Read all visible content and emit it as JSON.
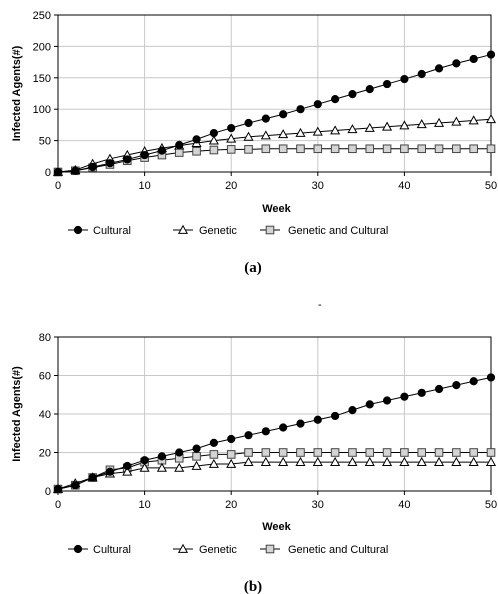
{
  "chart_data": [
    {
      "type": "line",
      "caption": "(a)",
      "xlabel": "Week",
      "ylabel": "Infected Agents(#)",
      "xlim": [
        0,
        50
      ],
      "ylim": [
        0,
        250
      ],
      "xticks": [
        0,
        10,
        20,
        30,
        40,
        50
      ],
      "yticks": [
        0,
        50,
        100,
        150,
        200,
        250
      ],
      "grid": true,
      "legend_position": "bottom",
      "x": [
        0,
        2,
        4,
        6,
        8,
        10,
        12,
        14,
        16,
        18,
        20,
        22,
        24,
        26,
        28,
        30,
        32,
        34,
        36,
        38,
        40,
        42,
        44,
        46,
        48,
        50
      ],
      "series": [
        {
          "name": "Cultural",
          "marker": "filled-circle",
          "values": [
            0,
            2,
            8,
            14,
            20,
            27,
            34,
            43,
            52,
            62,
            70,
            78,
            85,
            92,
            100,
            108,
            116,
            124,
            132,
            140,
            148,
            156,
            165,
            173,
            180,
            187
          ]
        },
        {
          "name": "Genetic",
          "marker": "open-triangle",
          "values": [
            0,
            3,
            13,
            21,
            27,
            33,
            38,
            42,
            46,
            50,
            53,
            56,
            58,
            60,
            62,
            64,
            66,
            68,
            70,
            72,
            74,
            76,
            78,
            80,
            82,
            84
          ]
        },
        {
          "name": "Genetic and Cultural",
          "marker": "open-square",
          "values": [
            0,
            2,
            7,
            12,
            18,
            23,
            27,
            31,
            33,
            35,
            36,
            36,
            37,
            37,
            37,
            37,
            37,
            37,
            37,
            37,
            37,
            37,
            37,
            37,
            37,
            37
          ]
        }
      ]
    },
    {
      "type": "line",
      "caption": "(b)",
      "xlabel": "Week",
      "ylabel": "Infected Agents(#)",
      "xlim": [
        0,
        50
      ],
      "ylim": [
        0,
        80
      ],
      "xticks": [
        0,
        10,
        20,
        30,
        40,
        50
      ],
      "yticks": [
        0,
        20,
        40,
        60,
        80
      ],
      "grid": true,
      "legend_position": "bottom",
      "x": [
        0,
        2,
        4,
        6,
        8,
        10,
        12,
        14,
        16,
        18,
        20,
        22,
        24,
        26,
        28,
        30,
        32,
        34,
        36,
        38,
        40,
        42,
        44,
        46,
        48,
        50
      ],
      "series": [
        {
          "name": "Cultural",
          "marker": "filled-circle",
          "values": [
            1,
            3,
            7,
            10,
            13,
            16,
            18,
            20,
            22,
            25,
            27,
            29,
            31,
            33,
            35,
            37,
            39,
            42,
            45,
            47,
            49,
            51,
            53,
            55,
            57,
            59
          ]
        },
        {
          "name": "Genetic",
          "marker": "open-triangle",
          "values": [
            1,
            4,
            7,
            9,
            10,
            12,
            12,
            12,
            13,
            14,
            14,
            15,
            15,
            15,
            15,
            15,
            15,
            15,
            15,
            15,
            15,
            15,
            15,
            15,
            15,
            15
          ]
        },
        {
          "name": "Genetic and Cultural",
          "marker": "open-square",
          "values": [
            1,
            3,
            7,
            11,
            12,
            15,
            16,
            17,
            18,
            19,
            19,
            20,
            20,
            20,
            20,
            20,
            20,
            20,
            20,
            20,
            20,
            20,
            20,
            20,
            20,
            20
          ]
        }
      ]
    }
  ],
  "stray_mark": "-"
}
